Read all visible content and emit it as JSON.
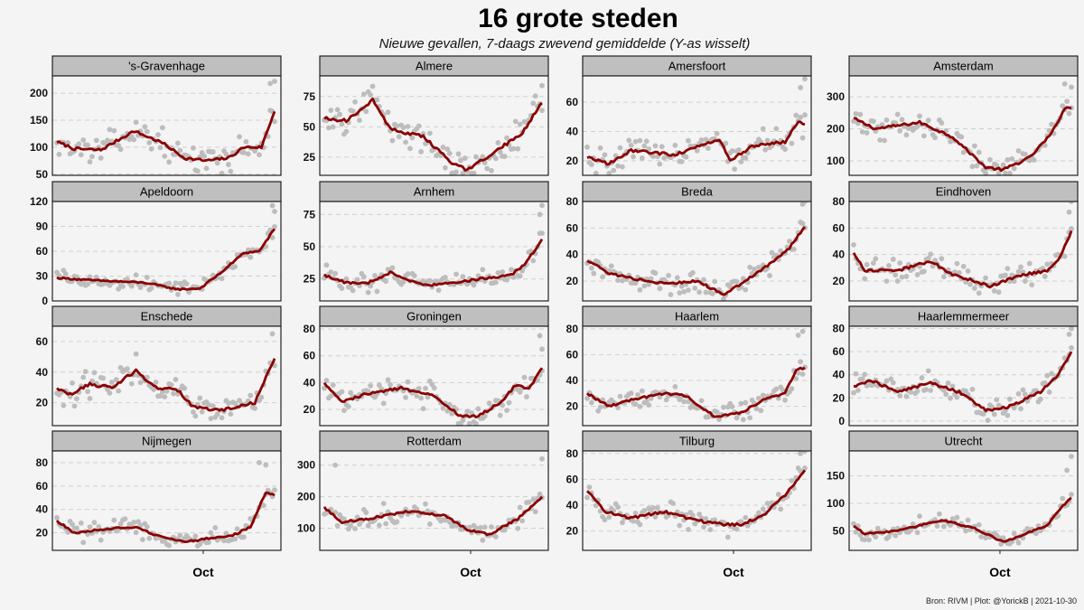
{
  "chart_data": {
    "type": "scatter",
    "title": "16 grote steden",
    "subtitle": "Nieuwe gevallen, 7-daags zwevend gemiddelde (Y-as wisselt)",
    "x_tick_label": "Oct",
    "caption": "Bron: RIVM | Plot: @YorickB |  2021-10-30",
    "colors": {
      "line": "#8b0000",
      "points": "#bdbdbd",
      "strip": "#bfbfbf",
      "background": "#f4f4f4"
    },
    "grid": "horizontal dashed",
    "n_days": 100,
    "panels": [
      {
        "name": "'s-Gravenhage",
        "ylim": [
          48,
          232
        ],
        "yticks": [
          50,
          100,
          150,
          200
        ],
        "trend": [
          [
            0,
            110
          ],
          [
            8,
            97
          ],
          [
            20,
            95
          ],
          [
            35,
            130
          ],
          [
            48,
            108
          ],
          [
            58,
            80
          ],
          [
            68,
            75
          ],
          [
            78,
            80
          ],
          [
            85,
            100
          ],
          [
            93,
            100
          ],
          [
            99,
            167
          ]
        ],
        "spread": 18,
        "outliers": [
          [
            97,
            218
          ],
          [
            99,
            222
          ]
        ]
      },
      {
        "name": "Almere",
        "ylim": [
          10,
          92
        ],
        "yticks": [
          25,
          50,
          75
        ],
        "trend": [
          [
            0,
            57
          ],
          [
            10,
            55
          ],
          [
            22,
            72
          ],
          [
            30,
            48
          ],
          [
            45,
            42
          ],
          [
            58,
            20
          ],
          [
            65,
            14
          ],
          [
            78,
            30
          ],
          [
            90,
            45
          ],
          [
            99,
            70
          ]
        ],
        "spread": 9,
        "outliers": [
          [
            99,
            84
          ]
        ]
      },
      {
        "name": "Amersfoort",
        "ylim": [
          10,
          78
        ],
        "yticks": [
          20,
          40,
          60
        ],
        "trend": [
          [
            0,
            22
          ],
          [
            10,
            18
          ],
          [
            20,
            27
          ],
          [
            40,
            24
          ],
          [
            60,
            35
          ],
          [
            65,
            20
          ],
          [
            75,
            30
          ],
          [
            90,
            33
          ],
          [
            96,
            47
          ],
          [
            99,
            45
          ]
        ],
        "spread": 7,
        "outliers": [
          [
            99,
            76
          ],
          [
            97,
            70
          ]
        ]
      },
      {
        "name": "Amsterdam",
        "ylim": [
          55,
          365
        ],
        "yticks": [
          100,
          200,
          300
        ],
        "trend": [
          [
            0,
            232
          ],
          [
            10,
            200
          ],
          [
            30,
            220
          ],
          [
            45,
            175
          ],
          [
            60,
            80
          ],
          [
            68,
            72
          ],
          [
            80,
            110
          ],
          [
            90,
            185
          ],
          [
            96,
            265
          ],
          [
            99,
            265
          ]
        ],
        "spread": 30,
        "outliers": [
          [
            96,
            340
          ],
          [
            99,
            330
          ]
        ]
      },
      {
        "name": "Apeldoorn",
        "ylim": [
          0,
          120
        ],
        "yticks": [
          0,
          30,
          60,
          90,
          120
        ],
        "trend": [
          [
            0,
            28
          ],
          [
            15,
            25
          ],
          [
            40,
            22
          ],
          [
            55,
            14
          ],
          [
            65,
            15
          ],
          [
            75,
            35
          ],
          [
            85,
            58
          ],
          [
            92,
            60
          ],
          [
            99,
            87
          ]
        ],
        "spread": 7,
        "outliers": [
          [
            98,
            115
          ],
          [
            99,
            108
          ]
        ]
      },
      {
        "name": "Arnhem",
        "ylim": [
          8,
          85
        ],
        "yticks": [
          25,
          50,
          75
        ],
        "trend": [
          [
            0,
            28
          ],
          [
            10,
            22
          ],
          [
            20,
            22
          ],
          [
            30,
            30
          ],
          [
            45,
            20
          ],
          [
            60,
            22
          ],
          [
            70,
            25
          ],
          [
            85,
            28
          ],
          [
            92,
            38
          ],
          [
            99,
            56
          ]
        ],
        "spread": 6,
        "outliers": [
          [
            99,
            82
          ],
          [
            98,
            75
          ]
        ]
      },
      {
        "name": "Breda",
        "ylim": [
          5,
          80
        ],
        "yticks": [
          20,
          40,
          60,
          80
        ],
        "trend": [
          [
            0,
            36
          ],
          [
            10,
            26
          ],
          [
            20,
            22
          ],
          [
            35,
            18
          ],
          [
            50,
            20
          ],
          [
            62,
            10
          ],
          [
            70,
            18
          ],
          [
            85,
            35
          ],
          [
            92,
            45
          ],
          [
            99,
            61
          ]
        ],
        "spread": 6,
        "outliers": [
          [
            99,
            80
          ],
          [
            98,
            78
          ]
        ]
      },
      {
        "name": "Eindhoven",
        "ylim": [
          5,
          80
        ],
        "yticks": [
          20,
          40,
          60,
          80
        ],
        "trend": [
          [
            0,
            42
          ],
          [
            5,
            28
          ],
          [
            20,
            28
          ],
          [
            35,
            35
          ],
          [
            45,
            25
          ],
          [
            55,
            20
          ],
          [
            62,
            16
          ],
          [
            75,
            24
          ],
          [
            88,
            28
          ],
          [
            94,
            38
          ],
          [
            99,
            58
          ]
        ],
        "spread": 7,
        "outliers": [
          [
            99,
            80
          ],
          [
            98,
            72
          ]
        ]
      },
      {
        "name": "Enschede",
        "ylim": [
          5,
          70
        ],
        "yticks": [
          20,
          40,
          60
        ],
        "trend": [
          [
            0,
            30
          ],
          [
            5,
            25
          ],
          [
            15,
            32
          ],
          [
            25,
            30
          ],
          [
            36,
            41
          ],
          [
            45,
            30
          ],
          [
            55,
            28
          ],
          [
            62,
            17
          ],
          [
            75,
            15
          ],
          [
            90,
            20
          ],
          [
            99,
            49
          ]
        ],
        "spread": 7,
        "outliers": [
          [
            99,
            76
          ],
          [
            98,
            65
          ]
        ]
      },
      {
        "name": "Groningen",
        "ylim": [
          8,
          82
        ],
        "yticks": [
          20,
          40,
          60,
          80
        ],
        "trend": [
          [
            0,
            40
          ],
          [
            8,
            26
          ],
          [
            20,
            32
          ],
          [
            35,
            36
          ],
          [
            50,
            30
          ],
          [
            62,
            15
          ],
          [
            70,
            15
          ],
          [
            80,
            25
          ],
          [
            87,
            38
          ],
          [
            93,
            35
          ],
          [
            99,
            51
          ]
        ],
        "spread": 7,
        "outliers": [
          [
            98,
            75
          ],
          [
            99,
            65
          ]
        ]
      },
      {
        "name": "Haarlem",
        "ylim": [
          5,
          82
        ],
        "yticks": [
          20,
          40,
          60,
          80
        ],
        "trend": [
          [
            0,
            30
          ],
          [
            10,
            20
          ],
          [
            20,
            25
          ],
          [
            35,
            30
          ],
          [
            45,
            28
          ],
          [
            58,
            12
          ],
          [
            70,
            15
          ],
          [
            80,
            25
          ],
          [
            90,
            30
          ],
          [
            95,
            48
          ],
          [
            99,
            50
          ]
        ],
        "spread": 6,
        "outliers": [
          [
            98,
            78
          ],
          [
            96,
            75
          ]
        ]
      },
      {
        "name": "Haarlemmermeer",
        "ylim": [
          -4,
          82
        ],
        "yticks": [
          0,
          20,
          40,
          60,
          80
        ],
        "trend": [
          [
            0,
            30
          ],
          [
            8,
            35
          ],
          [
            20,
            25
          ],
          [
            35,
            33
          ],
          [
            48,
            25
          ],
          [
            60,
            9
          ],
          [
            70,
            12
          ],
          [
            85,
            25
          ],
          [
            93,
            40
          ],
          [
            99,
            60
          ]
        ],
        "spread": 8,
        "outliers": [
          [
            99,
            80
          ],
          [
            98,
            75
          ]
        ]
      },
      {
        "name": "Nijmegen",
        "ylim": [
          5,
          90
        ],
        "yticks": [
          20,
          40,
          60,
          80
        ],
        "trend": [
          [
            0,
            30
          ],
          [
            8,
            20
          ],
          [
            20,
            23
          ],
          [
            35,
            25
          ],
          [
            45,
            18
          ],
          [
            58,
            12
          ],
          [
            68,
            15
          ],
          [
            80,
            18
          ],
          [
            88,
            25
          ],
          [
            95,
            55
          ],
          [
            99,
            52
          ]
        ],
        "spread": 6,
        "outliers": [
          [
            92,
            80
          ],
          [
            95,
            78
          ]
        ]
      },
      {
        "name": "Rotterdam",
        "ylim": [
          30,
          345
        ],
        "yticks": [
          100,
          200,
          300
        ],
        "trend": [
          [
            0,
            165
          ],
          [
            8,
            120
          ],
          [
            20,
            130
          ],
          [
            40,
            155
          ],
          [
            55,
            140
          ],
          [
            65,
            95
          ],
          [
            75,
            80
          ],
          [
            88,
            130
          ],
          [
            99,
            200
          ]
        ],
        "spread": 25,
        "outliers": [
          [
            99,
            320
          ],
          [
            5,
            300
          ]
        ]
      },
      {
        "name": "Tilburg",
        "ylim": [
          5,
          82
        ],
        "yticks": [
          20,
          40,
          60,
          80
        ],
        "trend": [
          [
            0,
            52
          ],
          [
            8,
            35
          ],
          [
            20,
            30
          ],
          [
            35,
            35
          ],
          [
            50,
            28
          ],
          [
            62,
            25
          ],
          [
            70,
            25
          ],
          [
            80,
            32
          ],
          [
            90,
            48
          ],
          [
            99,
            67
          ]
        ],
        "spread": 7,
        "outliers": [
          [
            99,
            82
          ],
          [
            97,
            80
          ]
        ]
      },
      {
        "name": "Utrecht",
        "ylim": [
          15,
          195
        ],
        "yticks": [
          50,
          100,
          150
        ],
        "trend": [
          [
            0,
            60
          ],
          [
            5,
            45
          ],
          [
            20,
            50
          ],
          [
            40,
            70
          ],
          [
            55,
            55
          ],
          [
            68,
            30
          ],
          [
            75,
            40
          ],
          [
            88,
            60
          ],
          [
            95,
            95
          ],
          [
            99,
            110
          ]
        ],
        "spread": 10,
        "outliers": [
          [
            99,
            185
          ],
          [
            97,
            160
          ]
        ]
      }
    ]
  }
}
